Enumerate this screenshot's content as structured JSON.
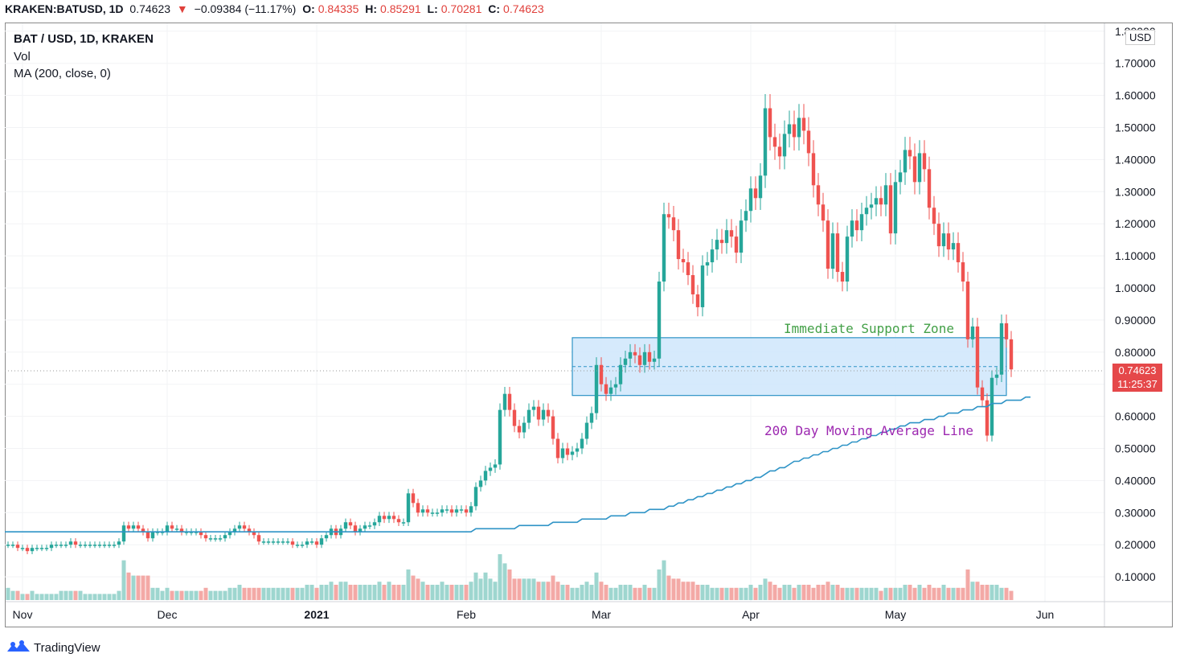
{
  "header": {
    "symbol": "KRAKEN:BATUSD, 1D",
    "last": "0.74623",
    "arrow": "▼",
    "change": "−0.09384 (−11.17%)",
    "o_label": "O:",
    "o_value": "0.84335",
    "h_label": "H:",
    "h_value": "0.85291",
    "l_label": "L:",
    "l_value": "0.70281",
    "c_label": "C:",
    "c_value": "0.74623"
  },
  "legend": {
    "title": "BAT / USD, 1D, KRAKEN",
    "vol": "Vol",
    "ma": "MA (200, close, 0)"
  },
  "currency_badge": "USD",
  "last_price_tag": {
    "price": "0.74623",
    "countdown": "11:25:37"
  },
  "brand": "TradingView",
  "colors": {
    "up": "#26a69a",
    "down": "#ef5350",
    "vol_up": "#9ed6cf",
    "vol_down": "#f3a9a6",
    "ma": "#2e93c6",
    "zone_fill": "#cfe6fb",
    "zone_border": "#2e93c6",
    "support_label": "#43a047",
    "ma_label": "#9c27b0",
    "price_tag": "#e5484a"
  },
  "chart_data": {
    "type": "candlestick",
    "symbol": "BAT / USD",
    "interval": "1D",
    "exchange": "KRAKEN",
    "y_axis": {
      "ticks": [
        "1.80000",
        "1.70000",
        "1.60000",
        "1.50000",
        "1.40000",
        "1.30000",
        "1.20000",
        "1.10000",
        "1.00000",
        "0.90000",
        "0.80000",
        "0.70000",
        "0.60000",
        "0.50000",
        "0.40000",
        "0.30000",
        "0.20000",
        "0.10000"
      ],
      "range": [
        0.0,
        1.8
      ]
    },
    "x_axis": {
      "ticks": [
        {
          "label": "Nov",
          "day": 3
        },
        {
          "label": "Dec",
          "day": 33
        },
        {
          "label": "2021",
          "day": 64,
          "bold": true
        },
        {
          "label": "Feb",
          "day": 95
        },
        {
          "label": "Mar",
          "day": 123
        },
        {
          "label": "Apr",
          "day": 154
        },
        {
          "label": "May",
          "day": 184
        },
        {
          "label": "Jun",
          "day": 215
        }
      ]
    },
    "close": [
      0.2,
      0.2,
      0.19,
      0.19,
      0.18,
      0.19,
      0.19,
      0.19,
      0.19,
      0.2,
      0.2,
      0.2,
      0.2,
      0.21,
      0.2,
      0.2,
      0.2,
      0.2,
      0.2,
      0.2,
      0.2,
      0.2,
      0.2,
      0.21,
      0.26,
      0.25,
      0.26,
      0.25,
      0.24,
      0.22,
      0.24,
      0.24,
      0.24,
      0.26,
      0.25,
      0.25,
      0.24,
      0.24,
      0.24,
      0.24,
      0.23,
      0.22,
      0.22,
      0.22,
      0.22,
      0.23,
      0.24,
      0.25,
      0.26,
      0.25,
      0.24,
      0.23,
      0.21,
      0.21,
      0.21,
      0.21,
      0.21,
      0.21,
      0.21,
      0.2,
      0.2,
      0.2,
      0.21,
      0.21,
      0.2,
      0.22,
      0.23,
      0.25,
      0.23,
      0.25,
      0.27,
      0.26,
      0.24,
      0.25,
      0.26,
      0.26,
      0.27,
      0.29,
      0.28,
      0.29,
      0.28,
      0.27,
      0.27,
      0.36,
      0.33,
      0.3,
      0.31,
      0.3,
      0.3,
      0.3,
      0.31,
      0.31,
      0.3,
      0.31,
      0.31,
      0.3,
      0.32,
      0.38,
      0.4,
      0.43,
      0.44,
      0.45,
      0.62,
      0.67,
      0.62,
      0.57,
      0.55,
      0.58,
      0.62,
      0.63,
      0.59,
      0.62,
      0.6,
      0.53,
      0.47,
      0.5,
      0.48,
      0.49,
      0.5,
      0.53,
      0.58,
      0.61,
      0.76,
      0.7,
      0.67,
      0.69,
      0.7,
      0.76,
      0.78,
      0.8,
      0.79,
      0.76,
      0.8,
      0.77,
      0.78,
      1.02,
      1.23,
      1.22,
      1.18,
      1.09,
      1.08,
      1.04,
      0.98,
      0.94,
      1.07,
      1.08,
      1.12,
      1.15,
      1.14,
      1.18,
      1.16,
      1.11,
      1.21,
      1.24,
      1.31,
      1.28,
      1.35,
      1.56,
      1.47,
      1.44,
      1.41,
      1.48,
      1.51,
      1.47,
      1.53,
      1.49,
      1.42,
      1.32,
      1.26,
      1.21,
      1.06,
      1.17,
      1.05,
      1.02,
      1.16,
      1.21,
      1.18,
      1.23,
      1.25,
      1.26,
      1.28,
      1.26,
      1.32,
      1.17,
      1.33,
      1.36,
      1.43,
      1.41,
      1.33,
      1.42,
      1.37,
      1.25,
      1.2,
      1.13,
      1.17,
      1.12,
      1.14,
      1.08,
      1.02,
      0.84,
      0.88,
      0.69,
      0.65,
      0.54,
      0.72,
      0.73,
      0.89,
      0.84,
      0.74623
    ],
    "volume": [
      0.04,
      0.03,
      0.03,
      0.02,
      0.02,
      0.03,
      0.02,
      0.02,
      0.02,
      0.02,
      0.02,
      0.03,
      0.03,
      0.03,
      0.03,
      0.03,
      0.02,
      0.02,
      0.02,
      0.02,
      0.02,
      0.02,
      0.02,
      0.03,
      0.13,
      0.09,
      0.08,
      0.08,
      0.08,
      0.08,
      0.04,
      0.04,
      0.03,
      0.04,
      0.03,
      0.03,
      0.03,
      0.03,
      0.03,
      0.03,
      0.03,
      0.04,
      0.03,
      0.03,
      0.03,
      0.03,
      0.04,
      0.04,
      0.05,
      0.04,
      0.04,
      0.04,
      0.04,
      0.04,
      0.04,
      0.04,
      0.04,
      0.04,
      0.04,
      0.04,
      0.04,
      0.04,
      0.05,
      0.05,
      0.04,
      0.05,
      0.05,
      0.06,
      0.05,
      0.06,
      0.06,
      0.05,
      0.05,
      0.05,
      0.05,
      0.05,
      0.05,
      0.06,
      0.05,
      0.06,
      0.05,
      0.05,
      0.05,
      0.1,
      0.08,
      0.07,
      0.06,
      0.05,
      0.05,
      0.05,
      0.06,
      0.05,
      0.05,
      0.05,
      0.05,
      0.05,
      0.06,
      0.09,
      0.07,
      0.09,
      0.07,
      0.06,
      0.15,
      0.12,
      0.1,
      0.07,
      0.07,
      0.07,
      0.07,
      0.07,
      0.06,
      0.06,
      0.06,
      0.08,
      0.06,
      0.05,
      0.05,
      0.04,
      0.04,
      0.05,
      0.06,
      0.05,
      0.09,
      0.06,
      0.05,
      0.04,
      0.04,
      0.05,
      0.05,
      0.05,
      0.04,
      0.04,
      0.05,
      0.04,
      0.04,
      0.1,
      0.13,
      0.08,
      0.07,
      0.07,
      0.06,
      0.06,
      0.06,
      0.05,
      0.05,
      0.05,
      0.04,
      0.04,
      0.04,
      0.04,
      0.04,
      0.04,
      0.04,
      0.04,
      0.05,
      0.04,
      0.05,
      0.07,
      0.06,
      0.05,
      0.04,
      0.05,
      0.05,
      0.04,
      0.05,
      0.05,
      0.05,
      0.04,
      0.05,
      0.05,
      0.06,
      0.05,
      0.05,
      0.04,
      0.04,
      0.04,
      0.04,
      0.04,
      0.04,
      0.04,
      0.04,
      0.03,
      0.04,
      0.04,
      0.04,
      0.04,
      0.05,
      0.05,
      0.04,
      0.05,
      0.04,
      0.05,
      0.04,
      0.04,
      0.05,
      0.04,
      0.04,
      0.04,
      0.04,
      0.1,
      0.06,
      0.06,
      0.05,
      0.05,
      0.05,
      0.05,
      0.04,
      0.04,
      0.03
    ],
    "ma200": [
      0.24,
      0.24,
      0.24,
      0.24,
      0.24,
      0.24,
      0.24,
      0.24,
      0.24,
      0.24,
      0.24,
      0.24,
      0.24,
      0.24,
      0.24,
      0.24,
      0.24,
      0.24,
      0.24,
      0.24,
      0.24,
      0.24,
      0.24,
      0.24,
      0.24,
      0.24,
      0.24,
      0.24,
      0.24,
      0.24,
      0.24,
      0.24,
      0.24,
      0.24,
      0.24,
      0.24,
      0.24,
      0.24,
      0.24,
      0.24,
      0.24,
      0.24,
      0.24,
      0.24,
      0.24,
      0.24,
      0.24,
      0.24,
      0.24,
      0.24,
      0.24,
      0.24,
      0.24,
      0.24,
      0.24,
      0.24,
      0.24,
      0.24,
      0.24,
      0.24,
      0.24,
      0.24,
      0.24,
      0.24,
      0.24,
      0.24,
      0.24,
      0.24,
      0.24,
      0.24,
      0.24,
      0.24,
      0.24,
      0.24,
      0.24,
      0.24,
      0.24,
      0.24,
      0.24,
      0.24,
      0.24,
      0.24,
      0.24,
      0.24,
      0.24,
      0.24,
      0.24,
      0.24,
      0.24,
      0.24,
      0.24,
      0.24,
      0.24,
      0.24,
      0.24,
      0.24,
      0.24,
      0.25,
      0.25,
      0.25,
      0.25,
      0.25,
      0.25,
      0.25,
      0.25,
      0.25,
      0.26,
      0.26,
      0.26,
      0.26,
      0.26,
      0.26,
      0.26,
      0.27,
      0.27,
      0.27,
      0.27,
      0.27,
      0.27,
      0.28,
      0.28,
      0.28,
      0.28,
      0.28,
      0.28,
      0.29,
      0.29,
      0.29,
      0.29,
      0.3,
      0.3,
      0.3,
      0.3,
      0.31,
      0.31,
      0.31,
      0.31,
      0.32,
      0.32,
      0.33,
      0.33,
      0.34,
      0.34,
      0.35,
      0.35,
      0.36,
      0.36,
      0.37,
      0.37,
      0.38,
      0.38,
      0.39,
      0.39,
      0.4,
      0.4,
      0.41,
      0.41,
      0.42,
      0.43,
      0.43,
      0.44,
      0.44,
      0.45,
      0.46,
      0.46,
      0.47,
      0.47,
      0.48,
      0.48,
      0.49,
      0.49,
      0.5,
      0.5,
      0.51,
      0.51,
      0.52,
      0.52,
      0.53,
      0.53,
      0.54,
      0.54,
      0.55,
      0.55,
      0.56,
      0.56,
      0.57,
      0.57,
      0.58,
      0.58,
      0.58,
      0.59,
      0.59,
      0.59,
      0.6,
      0.6,
      0.61,
      0.61,
      0.61,
      0.62,
      0.62,
      0.62,
      0.63,
      0.63,
      0.63,
      0.64,
      0.64,
      0.64,
      0.65,
      0.65,
      0.65,
      0.65,
      0.66,
      0.66
    ],
    "annotations": [
      {
        "text": "Immediate Support Zone",
        "kind": "zone",
        "low": 0.665,
        "high": 0.845,
        "from_day": 117,
        "to_day": 207
      },
      {
        "text": "200 Day Moving Average Line",
        "kind": "label"
      }
    ]
  }
}
